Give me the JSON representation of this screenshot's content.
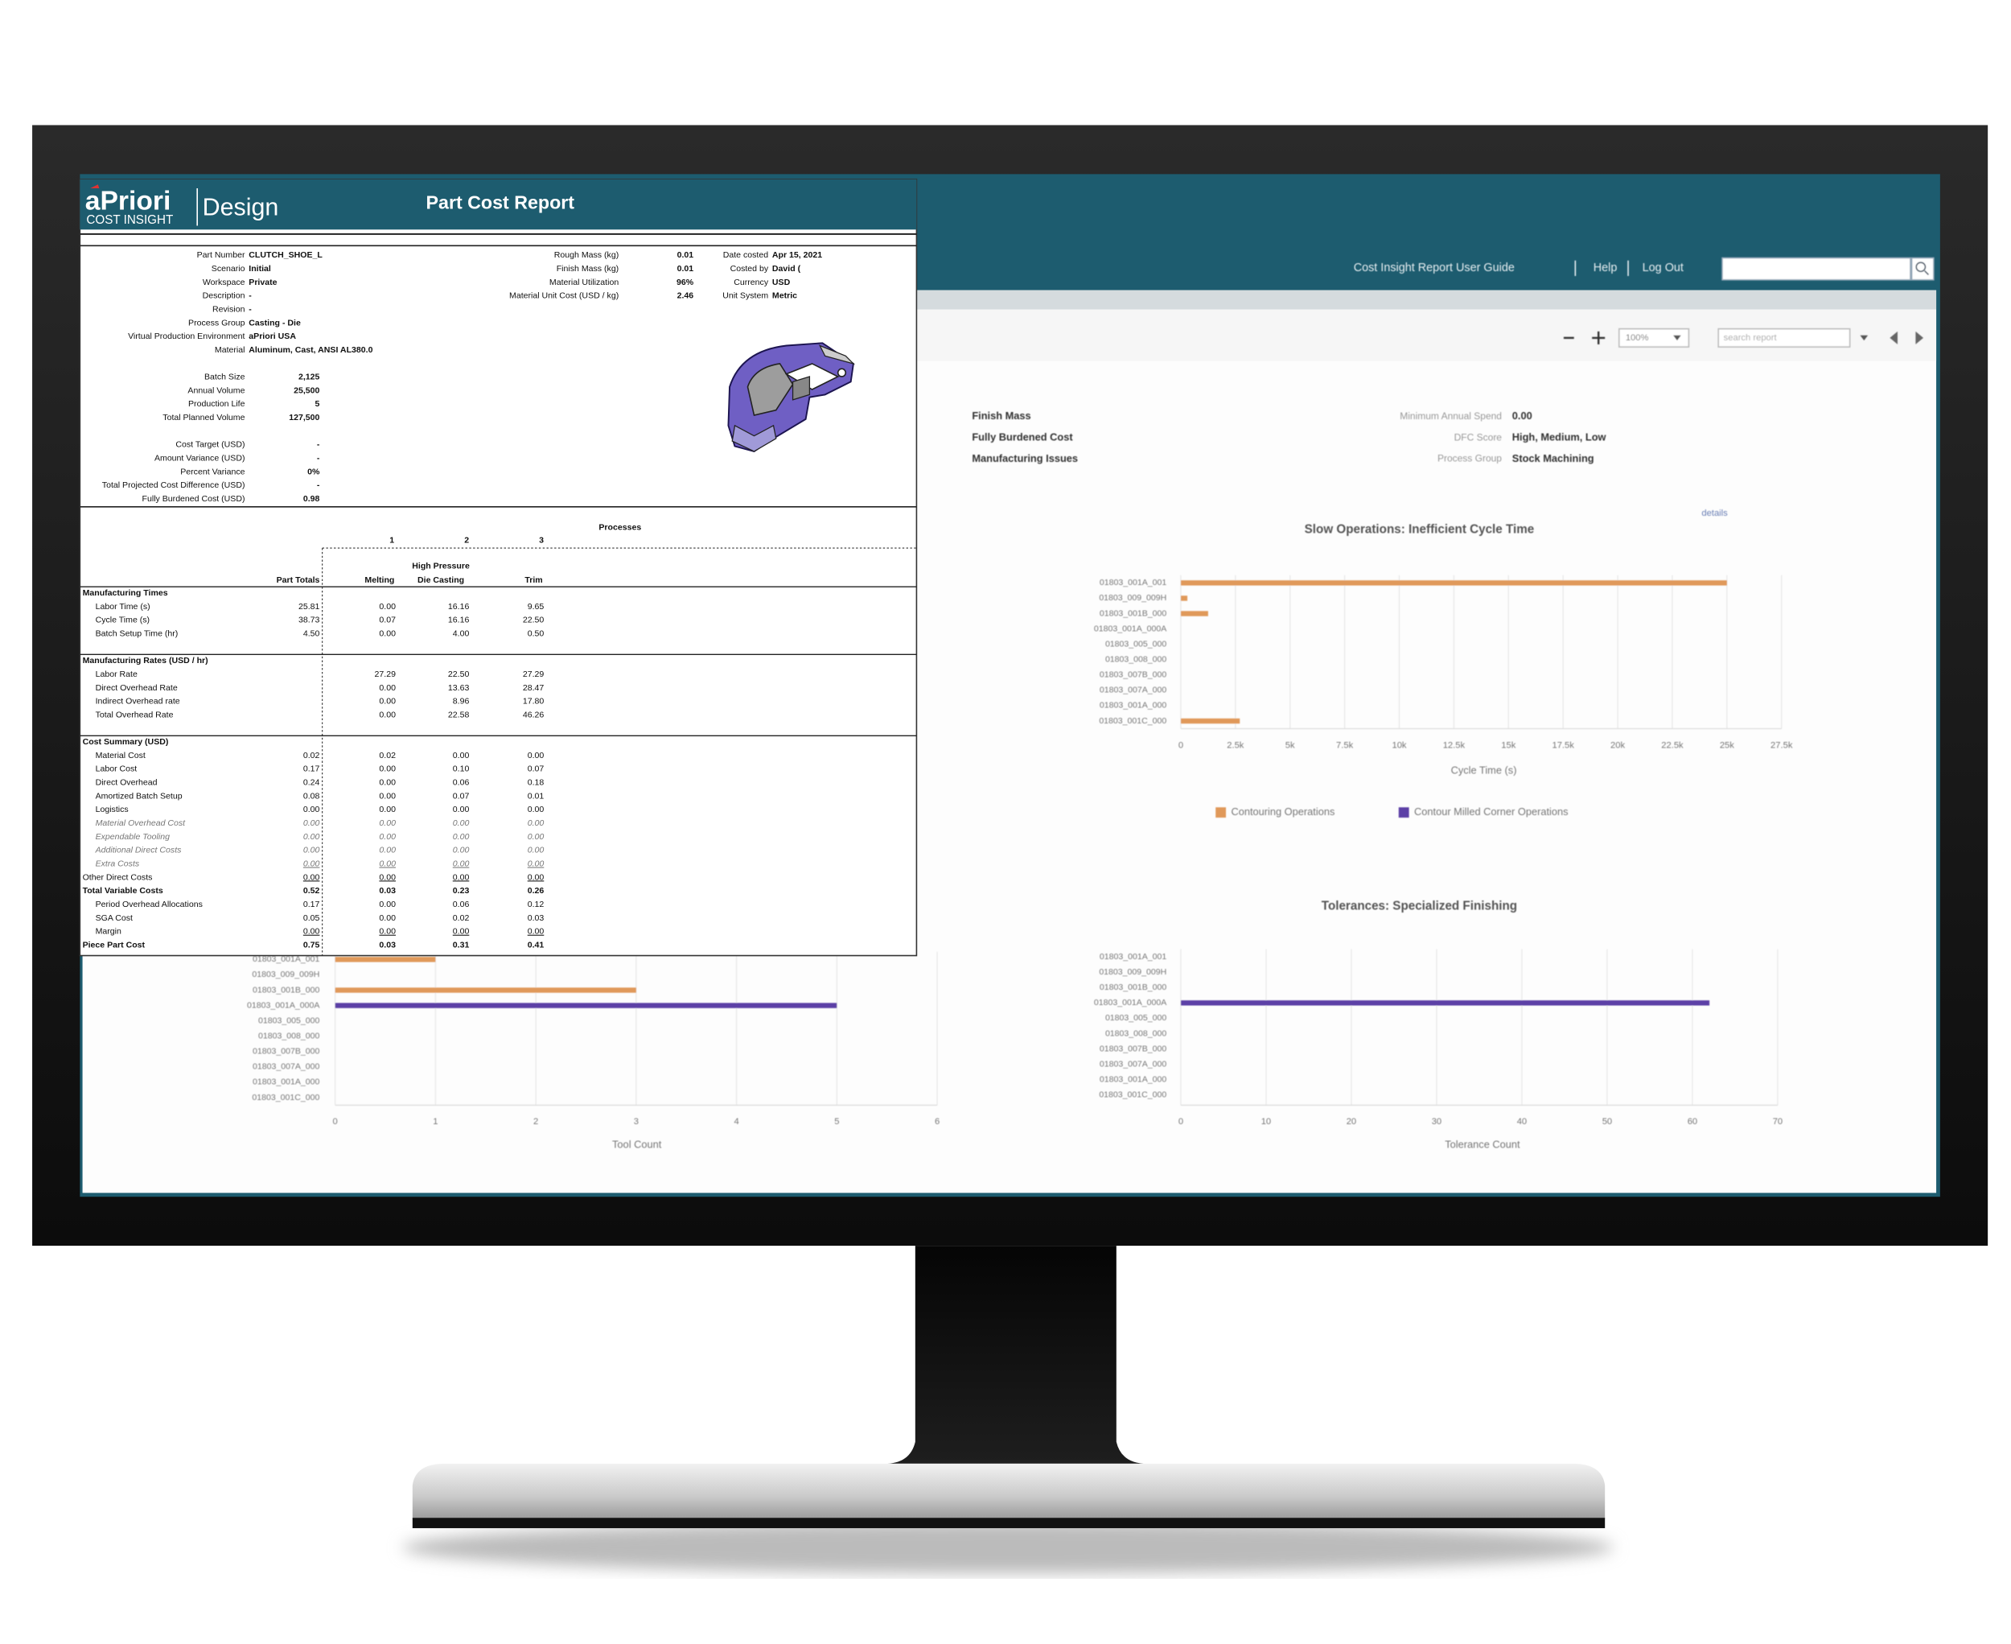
{
  "header": {
    "links": [
      "Cost Insight Report User Guide",
      "Help",
      "Log Out"
    ],
    "zoom": "100%",
    "search_placeholder": "search report"
  },
  "filters": {
    "left_values": [
      "Finish Mass",
      "Fully Burdened Cost",
      "Manufacturing Issues"
    ],
    "right": [
      {
        "label": "Minimum Annual Spend",
        "value": "0.00"
      },
      {
        "label": "DFC Score",
        "value": "High, Medium, Low"
      },
      {
        "label": "Process Group",
        "value": "Stock Machining"
      }
    ]
  },
  "details_link": "details",
  "chart_data": [
    {
      "type": "bar",
      "orientation": "horizontal",
      "title": "Slow Operations: Inefficient Cycle Time",
      "x_label": "Cycle Time (s)",
      "legend": true,
      "categories": [
        "01803_001A_001",
        "01803_009_009H",
        "01803_001B_000",
        "01803_001A_000A",
        "01803_005_000",
        "01803_008_000",
        "01803_007B_000",
        "01803_007A_000",
        "01803_001A_000",
        "01803_001C_000"
      ],
      "series": [
        {
          "name": "Contouring Operations",
          "color": "#e0995a",
          "values": [
            25000,
            300,
            1250,
            null,
            null,
            null,
            null,
            null,
            null,
            2700
          ]
        },
        {
          "name": "Contour Milled Corner Operations",
          "color": "#5b3fa6",
          "values": [
            null,
            null,
            null,
            null,
            null,
            null,
            null,
            null,
            null,
            null
          ]
        }
      ],
      "xlim": [
        0,
        27500
      ],
      "xticks": [
        0,
        {
          "value": 2500,
          "label": "2.5k"
        },
        {
          "value": 5000,
          "label": "5k"
        },
        {
          "value": 7500,
          "label": "7.5k"
        },
        {
          "value": 10000,
          "label": "10k"
        },
        {
          "value": 12500,
          "label": "12.5k"
        },
        {
          "value": 15000,
          "label": "15k"
        },
        {
          "value": 17500,
          "label": "17.5k"
        },
        {
          "value": 20000,
          "label": "20k"
        },
        {
          "value": 22500,
          "label": "22.5k"
        },
        {
          "value": 25000,
          "label": "25k"
        },
        {
          "value": 27500,
          "label": "27.5k"
        }
      ]
    },
    {
      "type": "bar",
      "orientation": "horizontal",
      "title": "Tolerances: Specialized Finishing",
      "x_label": "Tolerance Count",
      "legend": false,
      "categories": [
        "01803_001A_001",
        "01803_009_009H",
        "01803_001B_000",
        "01803_001A_000A",
        "01803_005_000",
        "01803_008_000",
        "01803_007B_000",
        "01803_007A_000",
        "01803_001A_000",
        "01803_001C_000"
      ],
      "series": [
        {
          "color": "#5b3fa6",
          "values": [
            null,
            null,
            null,
            62,
            null,
            null,
            null,
            null,
            null,
            null
          ]
        }
      ],
      "xlim": [
        0,
        70
      ],
      "xticks": [
        0,
        10,
        20,
        30,
        40,
        50,
        60,
        70
      ]
    },
    {
      "type": "bar",
      "orientation": "horizontal",
      "x_label": "Tool Count",
      "legend": false,
      "categories": [
        "01803_001A_001",
        "01803_009_009H",
        "01803_001B_000",
        "01803_001A_000A",
        "01803_005_000",
        "01803_008_000",
        "01803_007B_000",
        "01803_007A_000",
        "01803_001A_000",
        "01803_001C_000"
      ],
      "series": [
        {
          "color": "#e0995a",
          "values": [
            1,
            null,
            3,
            null,
            null,
            null,
            null,
            null,
            null,
            null
          ]
        },
        {
          "color": "#5b3fa6",
          "values": [
            null,
            null,
            null,
            5,
            null,
            null,
            null,
            null,
            null,
            null
          ]
        }
      ],
      "xlim": [
        0,
        6
      ],
      "xticks": [
        0,
        1,
        2,
        3,
        4,
        5,
        6
      ]
    }
  ],
  "report": {
    "logo": "aPriori",
    "logo_sub": "COST INSIGHT",
    "product": "Design",
    "title": "Part Cost Report",
    "info_left": [
      [
        {
          "label": "Part Number",
          "value": "CLUTCH_SHOE_L"
        },
        {
          "label": "Scenario",
          "value": "Initial"
        },
        {
          "label": "Workspace",
          "value": "Private"
        },
        {
          "label": "Description",
          "value": "-"
        },
        {
          "label": "Revision",
          "value": "-"
        },
        {
          "label": "Process Group",
          "value": "Casting - Die"
        },
        {
          "label": "Virtual Production Environment",
          "value": "aPriori USA"
        },
        {
          "label": "Material",
          "value": "Aluminum, Cast, ANSI AL380.0"
        }
      ],
      [
        {
          "label": "Batch Size",
          "value": "2,125"
        },
        {
          "label": "Annual Volume",
          "value": "25,500"
        },
        {
          "label": "Production Life",
          "value": "5"
        },
        {
          "label": "Total Planned Volume",
          "value": "127,500"
        }
      ],
      [
        {
          "label": "Cost Target (USD)",
          "value": "-"
        },
        {
          "label": "Amount Variance (USD)",
          "value": "-"
        },
        {
          "label": "Percent Variance",
          "value": "0%"
        },
        {
          "label": "Total Projected Cost Difference (USD)",
          "value": "-"
        },
        {
          "label": "Fully Burdened Cost (USD)",
          "value": "0.98"
        }
      ]
    ],
    "info_middle": [
      {
        "label": "Rough Mass (kg)",
        "value": "0.01"
      },
      {
        "label": "Finish Mass (kg)",
        "value": "0.01"
      },
      {
        "label": "Material Utilization",
        "value": "96%"
      },
      {
        "label": "Material Unit Cost (USD / kg)",
        "value": "2.46"
      }
    ],
    "info_right": [
      {
        "label": "Date costed",
        "value": "Apr 15, 2021"
      },
      {
        "label": "Costed by",
        "value": "David ("
      },
      {
        "label": "Currency",
        "value": "USD"
      },
      {
        "label": "Unit System",
        "value": "Metric"
      }
    ],
    "processes_label": "Processes",
    "process_numbers": [
      "1",
      "2",
      "3"
    ],
    "columns": [
      [
        "Part Totals"
      ],
      [
        "Melting"
      ],
      [
        "High Pressure",
        "Die Casting"
      ],
      [
        "Trim"
      ]
    ],
    "sections": [
      {
        "title": "Manufacturing Times",
        "rows": [
          {
            "label": "Labor Time (s)",
            "values": [
              "25.81",
              "0.00",
              "16.16",
              "9.65"
            ],
            "format": "indent"
          },
          {
            "label": "Cycle Time (s)",
            "values": [
              "38.73",
              "0.07",
              "16.16",
              "22.50"
            ],
            "format": "indent"
          },
          {
            "label": "Batch Setup Time (hr)",
            "values": [
              "4.50",
              "0.00",
              "4.00",
              "0.50"
            ],
            "format": "indent"
          }
        ]
      },
      {
        "title": "Manufacturing Rates (USD / hr)",
        "rows": [
          {
            "label": "Labor Rate",
            "values": [
              null,
              "27.29",
              "22.50",
              "27.29"
            ],
            "format": "indent"
          },
          {
            "label": "Direct Overhead Rate",
            "values": [
              null,
              "0.00",
              "13.63",
              "28.47"
            ],
            "format": "indent"
          },
          {
            "label": "Indirect Overhead rate",
            "values": [
              null,
              "0.00",
              "8.96",
              "17.80"
            ],
            "format": "indent"
          },
          {
            "label": "Total Overhead Rate",
            "values": [
              null,
              "0.00",
              "22.58",
              "46.26"
            ],
            "format": "indent"
          }
        ]
      },
      {
        "title": "Cost Summary (USD)",
        "rows": [
          {
            "label": "Material Cost",
            "values": [
              "0.02",
              "0.02",
              "0.00",
              "0.00"
            ],
            "format": "indent"
          },
          {
            "label": "Labor Cost",
            "values": [
              "0.17",
              "0.00",
              "0.10",
              "0.07"
            ],
            "format": "indent"
          },
          {
            "label": "Direct Overhead",
            "values": [
              "0.24",
              "0.00",
              "0.06",
              "0.18"
            ],
            "format": "indent"
          },
          {
            "label": "Amortized Batch Setup",
            "values": [
              "0.08",
              "0.00",
              "0.07",
              "0.01"
            ],
            "format": "indent"
          },
          {
            "label": "Logistics",
            "values": [
              "0.00",
              "0.00",
              "0.00",
              "0.00"
            ],
            "format": "indent"
          },
          {
            "label": "Material Overhead Cost",
            "values": [
              "0.00",
              "0.00",
              "0.00",
              "0.00"
            ],
            "format": "indent italic"
          },
          {
            "label": "Expendable Tooling",
            "values": [
              "0.00",
              "0.00",
              "0.00",
              "0.00"
            ],
            "format": "indent italic"
          },
          {
            "label": "Additional Direct Costs",
            "values": [
              "0.00",
              "0.00",
              "0.00",
              "0.00"
            ],
            "format": "indent italic"
          },
          {
            "label": "Extra Costs",
            "values": [
              "0.00",
              "0.00",
              "0.00",
              "0.00"
            ],
            "format": "indent italic underline"
          },
          {
            "label": "Other Direct Costs",
            "values": [
              "0.00",
              "0.00",
              "0.00",
              "0.00"
            ],
            "format": "underline"
          },
          {
            "label": "Total Variable Costs",
            "values": [
              "0.52",
              "0.03",
              "0.23",
              "0.26"
            ],
            "format": "bold"
          },
          {
            "label": "Period Overhead Allocations",
            "values": [
              "0.17",
              "0.00",
              "0.06",
              "0.12"
            ],
            "format": "indent"
          },
          {
            "label": "SGA Cost",
            "values": [
              "0.05",
              "0.00",
              "0.02",
              "0.03"
            ],
            "format": "indent"
          },
          {
            "label": "Margin",
            "values": [
              "0.00",
              "0.00",
              "0.00",
              "0.00"
            ],
            "format": "indent underline"
          },
          {
            "label": "Piece Part Cost",
            "values": [
              "0.75",
              "0.03",
              "0.31",
              "0.41"
            ],
            "format": "bold"
          }
        ]
      }
    ]
  }
}
